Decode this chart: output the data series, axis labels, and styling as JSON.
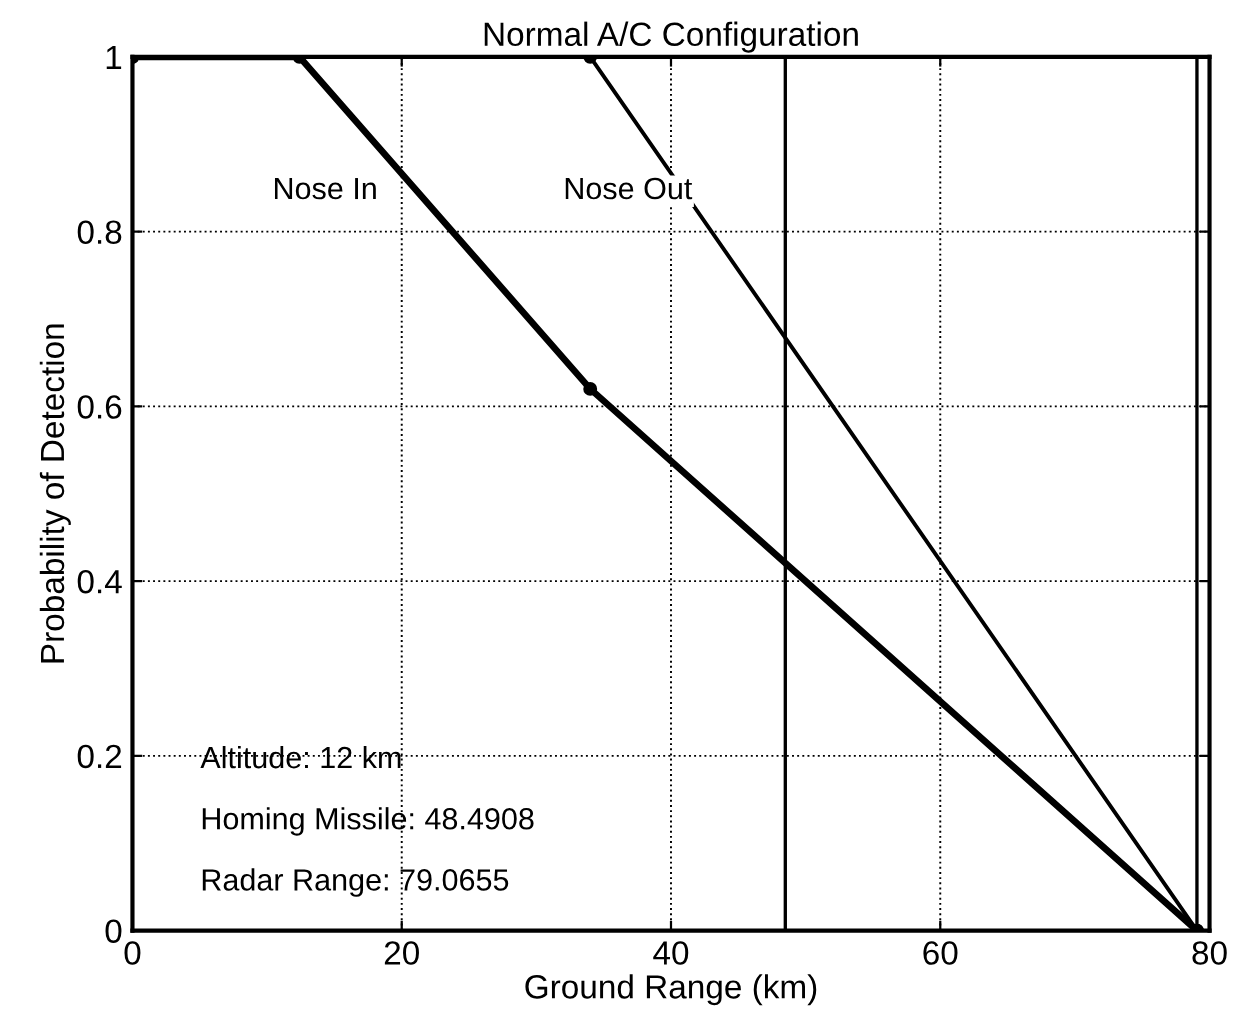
{
  "chart_data": {
    "type": "line",
    "title": "Normal A/C Configuration",
    "xlabel": "Ground Range (km)",
    "ylabel": "Probability of Detection",
    "series": [
      {
        "name": "Nose In",
        "color": "#000000",
        "x": [
          0,
          12.4,
          34,
          79.0655
        ],
        "values": [
          1,
          1,
          0.62,
          0
        ]
      },
      {
        "name": "Nose Out",
        "color": "#000000",
        "x": [
          0,
          34,
          79.0655
        ],
        "values": [
          1,
          1,
          0
        ]
      }
    ],
    "xlim": [
      0,
      80
    ],
    "xticks": [
      0,
      20,
      40,
      60,
      80
    ],
    "ylim": [
      0,
      1
    ],
    "yticks": [
      0,
      0.2,
      0.4,
      0.6,
      0.8,
      1
    ],
    "ref_lines": [
      {
        "axis": "x",
        "value": 48.4908,
        "color": "#000000"
      },
      {
        "axis": "x",
        "value": 79.0655,
        "color": "#000000"
      }
    ],
    "annotations": [
      "Altitude: 12 km",
      "Homing Missile: 48.4908",
      "Radar Range: 79.0655"
    ],
    "grid": true,
    "marker": "circle",
    "line_style": "solid",
    "legend": false
  }
}
